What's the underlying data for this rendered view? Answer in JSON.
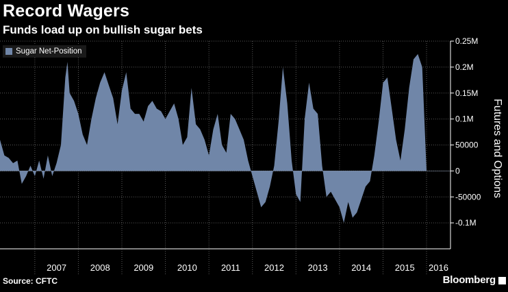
{
  "header": {
    "title": "Record Wagers",
    "subtitle": "Funds load up on bullish sugar bets"
  },
  "footer": {
    "source": "Source: CFTC",
    "brand": "Bloomberg"
  },
  "colors": {
    "area": "#7086a8",
    "background": "#000000",
    "grid": "#5a5a5a",
    "text": "#ffffff"
  },
  "chart_data": {
    "type": "area",
    "title": "Record Wagers",
    "subtitle": "Funds load up on bullish sugar bets",
    "ylabel": "Futures and Options",
    "legend": {
      "position": "top-left",
      "entries": [
        "Sugar Net-Position"
      ]
    },
    "ylim": [
      -150000,
      250000
    ],
    "xlim": [
      2006.2,
      2016.55
    ],
    "yticks": [
      {
        "value": 250000,
        "label": "0.25M"
      },
      {
        "value": 200000,
        "label": "0.2M"
      },
      {
        "value": 150000,
        "label": "0.15M"
      },
      {
        "value": 100000,
        "label": "0.1M"
      },
      {
        "value": 50000,
        "label": "50000"
      },
      {
        "value": 0,
        "label": "0"
      },
      {
        "value": -50000,
        "label": "-50000"
      },
      {
        "value": -100000,
        "label": "-0.1M"
      }
    ],
    "xticks": [
      "2007",
      "2008",
      "2009",
      "2010",
      "2011",
      "2012",
      "2013",
      "2014",
      "2015",
      "2016"
    ],
    "grid": true,
    "series": [
      {
        "name": "Sugar Net-Position",
        "x": [
          2006.2,
          2006.3,
          2006.4,
          2006.5,
          2006.6,
          2006.7,
          2006.8,
          2006.9,
          2007.0,
          2007.1,
          2007.2,
          2007.3,
          2007.4,
          2007.5,
          2007.6,
          2007.7,
          2007.75,
          2007.8,
          2007.9,
          2008.0,
          2008.1,
          2008.2,
          2008.3,
          2008.4,
          2008.5,
          2008.6,
          2008.7,
          2008.8,
          2008.9,
          2009.0,
          2009.1,
          2009.2,
          2009.3,
          2009.4,
          2009.5,
          2009.6,
          2009.7,
          2009.8,
          2009.9,
          2010.0,
          2010.1,
          2010.2,
          2010.3,
          2010.4,
          2010.5,
          2010.6,
          2010.7,
          2010.8,
          2010.9,
          2011.0,
          2011.1,
          2011.2,
          2011.3,
          2011.4,
          2011.5,
          2011.6,
          2011.7,
          2011.8,
          2011.9,
          2012.0,
          2012.1,
          2012.2,
          2012.3,
          2012.4,
          2012.5,
          2012.6,
          2012.7,
          2012.8,
          2012.9,
          2013.0,
          2013.1,
          2013.2,
          2013.3,
          2013.4,
          2013.5,
          2013.6,
          2013.7,
          2013.8,
          2013.9,
          2014.0,
          2014.1,
          2014.2,
          2014.3,
          2014.4,
          2014.5,
          2014.6,
          2014.7,
          2014.8,
          2014.9,
          2015.0,
          2015.1,
          2015.2,
          2015.3,
          2015.4,
          2015.5,
          2015.6,
          2015.7,
          2015.8,
          2015.9,
          2016.0,
          2016.1,
          2016.2,
          2016.3,
          2016.4,
          2016.45
        ],
        "values": [
          60000,
          30000,
          25000,
          15000,
          20000,
          -25000,
          -10000,
          10000,
          -10000,
          20000,
          -15000,
          30000,
          -10000,
          15000,
          50000,
          180000,
          210000,
          150000,
          135000,
          110000,
          70000,
          50000,
          100000,
          140000,
          170000,
          190000,
          165000,
          140000,
          90000,
          155000,
          190000,
          120000,
          110000,
          110000,
          95000,
          125000,
          135000,
          120000,
          115000,
          100000,
          115000,
          130000,
          100000,
          50000,
          65000,
          160000,
          90000,
          80000,
          60000,
          30000,
          80000,
          110000,
          50000,
          35000,
          110000,
          100000,
          80000,
          60000,
          20000,
          -10000,
          -40000,
          -70000,
          -60000,
          -30000,
          10000,
          95000,
          200000,
          130000,
          20000,
          -45000,
          -60000,
          100000,
          170000,
          120000,
          110000,
          10000,
          -50000,
          -40000,
          -55000,
          -70000,
          -100000,
          -60000,
          -90000,
          -80000,
          -55000,
          -30000,
          -20000,
          30000,
          95000,
          170000,
          180000,
          120000,
          60000,
          20000,
          80000,
          160000,
          215000,
          225000,
          200000,
          0,
          0,
          0,
          0,
          0,
          0
        ]
      }
    ]
  }
}
